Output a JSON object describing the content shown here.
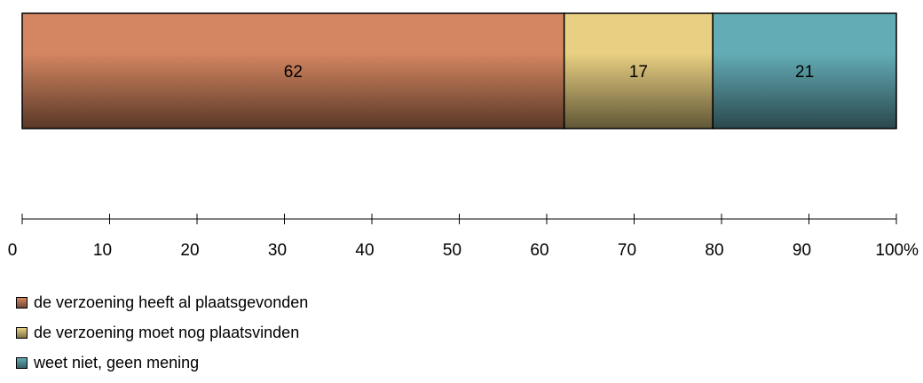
{
  "chart_data": {
    "type": "bar",
    "orientation": "horizontal",
    "stacked": "percent",
    "series": [
      {
        "name": "de verzoening heeft al plaatsgevonden",
        "values": [
          62
        ],
        "color": "#d48660"
      },
      {
        "name": "de verzoening moet nog plaatsvinden",
        "values": [
          17
        ],
        "color": "#e8cf82"
      },
      {
        "name": "weet niet, geen mening",
        "values": [
          21
        ],
        "color": "#63acb6"
      }
    ],
    "data_labels": [
      "62",
      "17",
      "21"
    ],
    "xlim": [
      0,
      100
    ],
    "x_ticks": [
      "0",
      "10",
      "20",
      "30",
      "40",
      "50",
      "60",
      "70",
      "80",
      "90",
      "100%"
    ],
    "grid": false,
    "legend_position": "bottom-left"
  }
}
